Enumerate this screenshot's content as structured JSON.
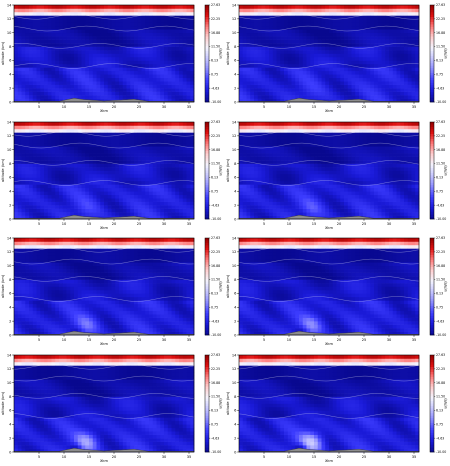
{
  "figure": {
    "rows": 4,
    "cols": 2
  },
  "colors": {
    "stops": [
      "#08088f",
      "#1a1ad8",
      "#3d3dff",
      "#8a8aff",
      "#c6c6ff",
      "#f4f4ff",
      "#ffd0d0",
      "#ff7a7a",
      "#e01010",
      "#8e0000"
    ],
    "ground": "#8c8c8c",
    "ground_edge": "#333333",
    "grid_line": "#ffffff",
    "axis": "#000000"
  },
  "chart_data": [
    {
      "type": "heatmap",
      "panel": "row1-left",
      "xlabel": "Xkm",
      "ylabel": "altitude (km)",
      "colorbar_label": "u(m/s)",
      "x_ticks": [
        "5",
        "10",
        "15",
        "20",
        "25",
        "30",
        "35"
      ],
      "y_ticks": [
        "0",
        "2",
        "4",
        "6",
        "8",
        "10",
        "12",
        "14"
      ],
      "colorbar_ticks": [
        "27.63",
        "22.25",
        "16.88",
        "11.50",
        "6.13",
        "0.75",
        "-4.63",
        "-10.00"
      ],
      "xlim": [
        0,
        36
      ],
      "ylim": [
        0,
        14
      ],
      "clim": [
        -10.0,
        27.63
      ],
      "terrain": [
        [
          0,
          0.1
        ],
        [
          9,
          0.1
        ],
        [
          12,
          0.55
        ],
        [
          14,
          0.35
        ],
        [
          18,
          0.15
        ],
        [
          24,
          0.4
        ],
        [
          27,
          0.1
        ],
        [
          36,
          0.1
        ]
      ],
      "anomaly_strength": 0.0
    },
    {
      "type": "heatmap",
      "panel": "row1-right",
      "xlabel": "Xkm",
      "ylabel": "altitude (km)",
      "colorbar_label": "u(m/s)",
      "x_ticks": [
        "5",
        "10",
        "15",
        "20",
        "25",
        "30",
        "35"
      ],
      "y_ticks": [
        "0",
        "2",
        "4",
        "6",
        "8",
        "10",
        "12",
        "14"
      ],
      "colorbar_ticks": [
        "27.63",
        "22.25",
        "16.88",
        "11.50",
        "6.13",
        "0.75",
        "-4.63",
        "-10.00"
      ],
      "xlim": [
        0,
        36
      ],
      "ylim": [
        0,
        14
      ],
      "clim": [
        -10.0,
        27.63
      ],
      "terrain": [
        [
          0,
          0.1
        ],
        [
          9,
          0.1
        ],
        [
          12,
          0.55
        ],
        [
          14,
          0.35
        ],
        [
          18,
          0.15
        ],
        [
          24,
          0.4
        ],
        [
          27,
          0.1
        ],
        [
          36,
          0.1
        ]
      ],
      "anomaly_strength": 0.1
    },
    {
      "type": "heatmap",
      "panel": "row2-left",
      "xlabel": "Xkm",
      "ylabel": "altitude (km)",
      "colorbar_label": "u(m/s)",
      "x_ticks": [
        "5",
        "10",
        "15",
        "20",
        "25",
        "30",
        "35"
      ],
      "y_ticks": [
        "0",
        "2",
        "4",
        "6",
        "8",
        "10",
        "12",
        "14"
      ],
      "colorbar_ticks": [
        "27.63",
        "22.25",
        "16.88",
        "11.50",
        "6.13",
        "0.75",
        "-4.63",
        "-10.00"
      ],
      "xlim": [
        0,
        36
      ],
      "ylim": [
        0,
        14
      ],
      "clim": [
        -10.0,
        27.63
      ],
      "terrain": [
        [
          0,
          0.1
        ],
        [
          9,
          0.1
        ],
        [
          12,
          0.55
        ],
        [
          14,
          0.35
        ],
        [
          18,
          0.15
        ],
        [
          24,
          0.4
        ],
        [
          27,
          0.1
        ],
        [
          36,
          0.1
        ]
      ],
      "anomaly_strength": 0.2
    },
    {
      "type": "heatmap",
      "panel": "row2-right",
      "xlabel": "Xkm",
      "ylabel": "altitude (km)",
      "colorbar_label": "u(m/s)",
      "x_ticks": [
        "5",
        "10",
        "15",
        "20",
        "25",
        "30",
        "35"
      ],
      "y_ticks": [
        "0",
        "2",
        "4",
        "6",
        "8",
        "10",
        "12",
        "14"
      ],
      "colorbar_ticks": [
        "27.63",
        "22.25",
        "16.88",
        "11.50",
        "6.13",
        "0.75",
        "-4.63",
        "-10.00"
      ],
      "xlim": [
        0,
        36
      ],
      "ylim": [
        0,
        14
      ],
      "clim": [
        -10.0,
        27.63
      ],
      "terrain": [
        [
          0,
          0.1
        ],
        [
          9,
          0.1
        ],
        [
          12,
          0.55
        ],
        [
          14,
          0.35
        ],
        [
          18,
          0.15
        ],
        [
          24,
          0.4
        ],
        [
          27,
          0.1
        ],
        [
          36,
          0.1
        ]
      ],
      "anomaly_strength": 0.3
    },
    {
      "type": "heatmap",
      "panel": "row3-left",
      "xlabel": "Xkm",
      "ylabel": "altitude (km)",
      "colorbar_label": "u(m/s)",
      "x_ticks": [
        "5",
        "10",
        "15",
        "20",
        "25",
        "30",
        "35"
      ],
      "y_ticks": [
        "0",
        "2",
        "4",
        "6",
        "8",
        "10",
        "12",
        "14"
      ],
      "colorbar_ticks": [
        "27.63",
        "22.25",
        "16.88",
        "11.50",
        "6.13",
        "0.75",
        "-4.63",
        "-10.00"
      ],
      "xlim": [
        0,
        36
      ],
      "ylim": [
        0,
        14
      ],
      "clim": [
        -10.0,
        27.63
      ],
      "terrain": [
        [
          0,
          0.1
        ],
        [
          9,
          0.1
        ],
        [
          12,
          0.55
        ],
        [
          14,
          0.35
        ],
        [
          18,
          0.15
        ],
        [
          24,
          0.4
        ],
        [
          27,
          0.1
        ],
        [
          36,
          0.1
        ]
      ],
      "anomaly_strength": 0.45
    },
    {
      "type": "heatmap",
      "panel": "row3-right",
      "xlabel": "Xkm",
      "ylabel": "altitude (km)",
      "colorbar_label": "u(m/s)",
      "x_ticks": [
        "5",
        "10",
        "15",
        "20",
        "25",
        "30",
        "35"
      ],
      "y_ticks": [
        "0",
        "2",
        "4",
        "6",
        "8",
        "10",
        "12",
        "14"
      ],
      "colorbar_ticks": [
        "27.63",
        "22.25",
        "16.88",
        "11.50",
        "6.13",
        "0.75",
        "-4.63",
        "-10.00"
      ],
      "xlim": [
        0,
        36
      ],
      "ylim": [
        0,
        14
      ],
      "clim": [
        -10.0,
        27.63
      ],
      "terrain": [
        [
          0,
          0.1
        ],
        [
          9,
          0.1
        ],
        [
          12,
          0.55
        ],
        [
          14,
          0.35
        ],
        [
          18,
          0.15
        ],
        [
          24,
          0.4
        ],
        [
          27,
          0.1
        ],
        [
          36,
          0.1
        ]
      ],
      "anomaly_strength": 0.55
    },
    {
      "type": "heatmap",
      "panel": "row4-left",
      "xlabel": "Xkm",
      "ylabel": "altitude (km)",
      "colorbar_label": "u(m/s)",
      "x_ticks": [
        "5",
        "10",
        "15",
        "20",
        "25",
        "30",
        "35"
      ],
      "y_ticks": [
        "0",
        "2",
        "4",
        "6",
        "8",
        "10",
        "12",
        "14"
      ],
      "colorbar_ticks": [
        "27.63",
        "22.25",
        "16.88",
        "11.50",
        "6.13",
        "0.75",
        "-4.63",
        "-10.00"
      ],
      "xlim": [
        0,
        36
      ],
      "ylim": [
        0,
        14
      ],
      "clim": [
        -10.0,
        27.63
      ],
      "terrain": [
        [
          0,
          0.1
        ],
        [
          9,
          0.1
        ],
        [
          12,
          0.55
        ],
        [
          14,
          0.35
        ],
        [
          18,
          0.15
        ],
        [
          24,
          0.4
        ],
        [
          27,
          0.1
        ],
        [
          36,
          0.1
        ]
      ],
      "anomaly_strength": 0.75
    },
    {
      "type": "heatmap",
      "panel": "row4-right",
      "xlabel": "Xkm",
      "ylabel": "altitude (km)",
      "colorbar_label": "u(m/s)",
      "x_ticks": [
        "5",
        "10",
        "15",
        "20",
        "25",
        "30",
        "35"
      ],
      "y_ticks": [
        "0",
        "2",
        "4",
        "6",
        "8",
        "10",
        "12",
        "14"
      ],
      "colorbar_ticks": [
        "27.63",
        "22.25",
        "16.88",
        "11.50",
        "6.13",
        "0.75",
        "-4.63",
        "-10.00"
      ],
      "xlim": [
        0,
        36
      ],
      "ylim": [
        0,
        14
      ],
      "clim": [
        -10.0,
        27.63
      ],
      "terrain": [
        [
          0,
          0.1
        ],
        [
          9,
          0.1
        ],
        [
          12,
          0.55
        ],
        [
          14,
          0.35
        ],
        [
          18,
          0.15
        ],
        [
          24,
          0.4
        ],
        [
          27,
          0.1
        ],
        [
          36,
          0.1
        ]
      ],
      "anomaly_strength": 1.0
    }
  ]
}
